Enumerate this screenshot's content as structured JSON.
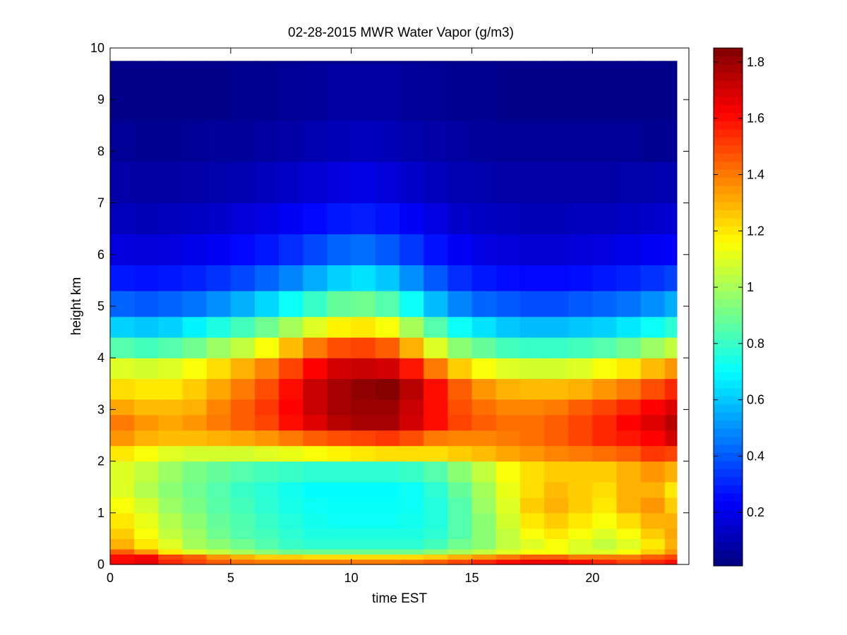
{
  "chart_data": {
    "type": "heatmap",
    "title": "02-28-2015 MWR Water Vapor (g/m3)",
    "xlabel": "time EST",
    "ylabel": "height km",
    "xlim": [
      0,
      24
    ],
    "ylim": [
      0,
      10
    ],
    "x_ticks": [
      "0",
      "5",
      "10",
      "15",
      "20"
    ],
    "y_ticks": [
      "0",
      "1",
      "2",
      "3",
      "4",
      "5",
      "6",
      "7",
      "8",
      "9",
      "10"
    ],
    "colorbar": {
      "colormap": "jet",
      "clim": [
        0.01,
        1.85
      ],
      "ticks": [
        "0.2",
        "0.4",
        "0.6",
        "0.8",
        "1",
        "1.2",
        "1.4",
        "1.6",
        "1.8"
      ]
    },
    "time_hours": [
      0,
      1,
      2,
      3,
      4,
      5,
      6,
      7,
      8,
      9,
      10,
      11,
      12,
      13,
      14,
      15,
      16,
      17,
      18,
      19,
      20,
      21,
      22,
      23
    ],
    "height_km": [
      0,
      0.1,
      0.2,
      0.3,
      0.5,
      0.7,
      1.0,
      1.3,
      1.6,
      2.0,
      2.3,
      2.6,
      2.9,
      3.2,
      3.6,
      4.0,
      4.4,
      4.8,
      5.3,
      5.8,
      6.4,
      7.0,
      7.8,
      8.6,
      9.7
    ],
    "water_vapor_gm3": [
      [
        1.62,
        1.66,
        1.55,
        1.5,
        1.45,
        1.42,
        1.4,
        1.4,
        1.4,
        1.4,
        1.4,
        1.4,
        1.42,
        1.45,
        1.5,
        1.55,
        1.6,
        1.65,
        1.65,
        1.6,
        1.55,
        1.5,
        1.55,
        1.6
      ],
      [
        1.6,
        1.62,
        1.5,
        1.45,
        1.35,
        1.3,
        1.25,
        1.25,
        1.22,
        1.22,
        1.22,
        1.22,
        1.22,
        1.25,
        1.3,
        1.35,
        1.4,
        1.45,
        1.45,
        1.4,
        1.4,
        1.4,
        1.45,
        1.5
      ],
      [
        1.45,
        1.35,
        1.2,
        1.1,
        1.05,
        1.0,
        0.95,
        0.9,
        0.9,
        0.9,
        0.9,
        0.9,
        0.9,
        0.95,
        1.0,
        1.05,
        1.1,
        1.15,
        1.15,
        1.1,
        1.1,
        1.15,
        1.25,
        1.35
      ],
      [
        1.3,
        1.2,
        1.1,
        1.0,
        0.95,
        0.9,
        0.85,
        0.8,
        0.78,
        0.78,
        0.78,
        0.78,
        0.78,
        0.82,
        0.9,
        0.95,
        1.05,
        1.1,
        1.15,
        1.1,
        1.05,
        1.1,
        1.2,
        1.3
      ],
      [
        1.25,
        1.15,
        1.05,
        0.98,
        0.9,
        0.85,
        0.82,
        0.78,
        0.75,
        0.75,
        0.75,
        0.75,
        0.75,
        0.78,
        0.85,
        0.95,
        1.05,
        1.15,
        1.2,
        1.15,
        1.1,
        1.15,
        1.25,
        1.32
      ],
      [
        1.2,
        1.12,
        1.02,
        0.95,
        0.88,
        0.84,
        0.8,
        0.76,
        0.73,
        0.72,
        0.72,
        0.72,
        0.73,
        0.76,
        0.85,
        0.95,
        1.08,
        1.2,
        1.25,
        1.2,
        1.15,
        1.22,
        1.3,
        1.3
      ],
      [
        1.15,
        1.08,
        0.98,
        0.92,
        0.86,
        0.82,
        0.78,
        0.74,
        0.72,
        0.71,
        0.71,
        0.71,
        0.72,
        0.76,
        0.85,
        0.98,
        1.1,
        1.25,
        1.3,
        1.25,
        1.2,
        1.3,
        1.35,
        1.25
      ],
      [
        1.1,
        1.02,
        0.95,
        0.9,
        0.85,
        0.8,
        0.77,
        0.73,
        0.7,
        0.7,
        0.7,
        0.7,
        0.72,
        0.78,
        0.88,
        1.0,
        1.12,
        1.22,
        1.28,
        1.25,
        1.22,
        1.3,
        1.3,
        1.2
      ],
      [
        1.1,
        1.05,
        0.98,
        0.92,
        0.88,
        0.85,
        0.82,
        0.8,
        0.78,
        0.78,
        0.78,
        0.78,
        0.8,
        0.85,
        0.95,
        1.05,
        1.15,
        1.22,
        1.25,
        1.25,
        1.25,
        1.3,
        1.35,
        1.3
      ],
      [
        1.2,
        1.15,
        1.1,
        1.08,
        1.08,
        1.08,
        1.1,
        1.12,
        1.15,
        1.18,
        1.2,
        1.22,
        1.22,
        1.22,
        1.25,
        1.28,
        1.32,
        1.35,
        1.38,
        1.4,
        1.42,
        1.45,
        1.52,
        1.5
      ],
      [
        1.35,
        1.3,
        1.28,
        1.28,
        1.3,
        1.32,
        1.35,
        1.4,
        1.45,
        1.48,
        1.5,
        1.52,
        1.48,
        1.4,
        1.38,
        1.38,
        1.4,
        1.42,
        1.45,
        1.5,
        1.55,
        1.58,
        1.62,
        1.7
      ],
      [
        1.4,
        1.35,
        1.32,
        1.35,
        1.4,
        1.45,
        1.5,
        1.6,
        1.68,
        1.75,
        1.78,
        1.78,
        1.7,
        1.6,
        1.5,
        1.45,
        1.42,
        1.42,
        1.45,
        1.5,
        1.55,
        1.62,
        1.68,
        1.75
      ],
      [
        1.32,
        1.28,
        1.28,
        1.3,
        1.38,
        1.45,
        1.52,
        1.62,
        1.72,
        1.78,
        1.8,
        1.8,
        1.72,
        1.6,
        1.48,
        1.42,
        1.38,
        1.38,
        1.4,
        1.45,
        1.5,
        1.55,
        1.62,
        1.68
      ],
      [
        1.22,
        1.2,
        1.2,
        1.25,
        1.32,
        1.4,
        1.48,
        1.6,
        1.72,
        1.78,
        1.82,
        1.84,
        1.75,
        1.6,
        1.45,
        1.35,
        1.3,
        1.28,
        1.28,
        1.3,
        1.35,
        1.4,
        1.48,
        1.55
      ],
      [
        1.1,
        1.08,
        1.1,
        1.15,
        1.22,
        1.3,
        1.38,
        1.5,
        1.62,
        1.7,
        1.72,
        1.7,
        1.58,
        1.4,
        1.25,
        1.15,
        1.1,
        1.08,
        1.08,
        1.1,
        1.15,
        1.2,
        1.28,
        1.35
      ],
      [
        0.85,
        0.82,
        0.85,
        0.9,
        0.98,
        1.05,
        1.15,
        1.28,
        1.4,
        1.48,
        1.5,
        1.45,
        1.3,
        1.1,
        0.95,
        0.88,
        0.82,
        0.8,
        0.8,
        0.82,
        0.85,
        0.9,
        0.98,
        1.05
      ],
      [
        0.62,
        0.6,
        0.62,
        0.68,
        0.75,
        0.82,
        0.9,
        1.0,
        1.1,
        1.18,
        1.2,
        1.15,
        1.0,
        0.85,
        0.72,
        0.65,
        0.6,
        0.58,
        0.58,
        0.6,
        0.62,
        0.66,
        0.72,
        0.78
      ],
      [
        0.42,
        0.4,
        0.42,
        0.45,
        0.5,
        0.56,
        0.63,
        0.72,
        0.8,
        0.88,
        0.9,
        0.85,
        0.72,
        0.58,
        0.48,
        0.42,
        0.4,
        0.38,
        0.38,
        0.4,
        0.42,
        0.45,
        0.5,
        0.55
      ],
      [
        0.28,
        0.27,
        0.28,
        0.3,
        0.33,
        0.37,
        0.42,
        0.48,
        0.55,
        0.62,
        0.65,
        0.6,
        0.5,
        0.4,
        0.32,
        0.28,
        0.26,
        0.25,
        0.25,
        0.26,
        0.28,
        0.3,
        0.33,
        0.36
      ],
      [
        0.18,
        0.17,
        0.18,
        0.2,
        0.22,
        0.25,
        0.28,
        0.32,
        0.37,
        0.42,
        0.44,
        0.4,
        0.34,
        0.27,
        0.22,
        0.19,
        0.17,
        0.16,
        0.16,
        0.17,
        0.18,
        0.2,
        0.22,
        0.24
      ],
      [
        0.12,
        0.11,
        0.12,
        0.13,
        0.15,
        0.17,
        0.19,
        0.22,
        0.25,
        0.28,
        0.29,
        0.27,
        0.23,
        0.19,
        0.15,
        0.13,
        0.12,
        0.11,
        0.11,
        0.12,
        0.12,
        0.13,
        0.15,
        0.16
      ],
      [
        0.08,
        0.07,
        0.07,
        0.08,
        0.09,
        0.1,
        0.12,
        0.14,
        0.16,
        0.18,
        0.19,
        0.17,
        0.15,
        0.12,
        0.1,
        0.09,
        0.08,
        0.08,
        0.08,
        0.08,
        0.08,
        0.09,
        0.09,
        0.1
      ],
      [
        0.05,
        0.04,
        0.04,
        0.05,
        0.06,
        0.06,
        0.07,
        0.08,
        0.1,
        0.11,
        0.12,
        0.11,
        0.09,
        0.08,
        0.07,
        0.06,
        0.05,
        0.05,
        0.05,
        0.05,
        0.05,
        0.05,
        0.04,
        0.05
      ],
      [
        0.03,
        0.03,
        0.03,
        0.03,
        0.03,
        0.04,
        0.04,
        0.05,
        0.06,
        0.07,
        0.07,
        0.07,
        0.06,
        0.05,
        0.04,
        0.04,
        0.03,
        0.03,
        0.03,
        0.03,
        0.03,
        0.03,
        0.03,
        0.03
      ],
      [
        0.02,
        0.02,
        0.02,
        0.02,
        0.02,
        0.02,
        0.02,
        0.03,
        0.03,
        0.03,
        0.03,
        0.03,
        0.03,
        0.03,
        0.02,
        0.02,
        0.02,
        0.02,
        0.02,
        0.02,
        0.02,
        0.02,
        0.02,
        0.02
      ]
    ]
  }
}
